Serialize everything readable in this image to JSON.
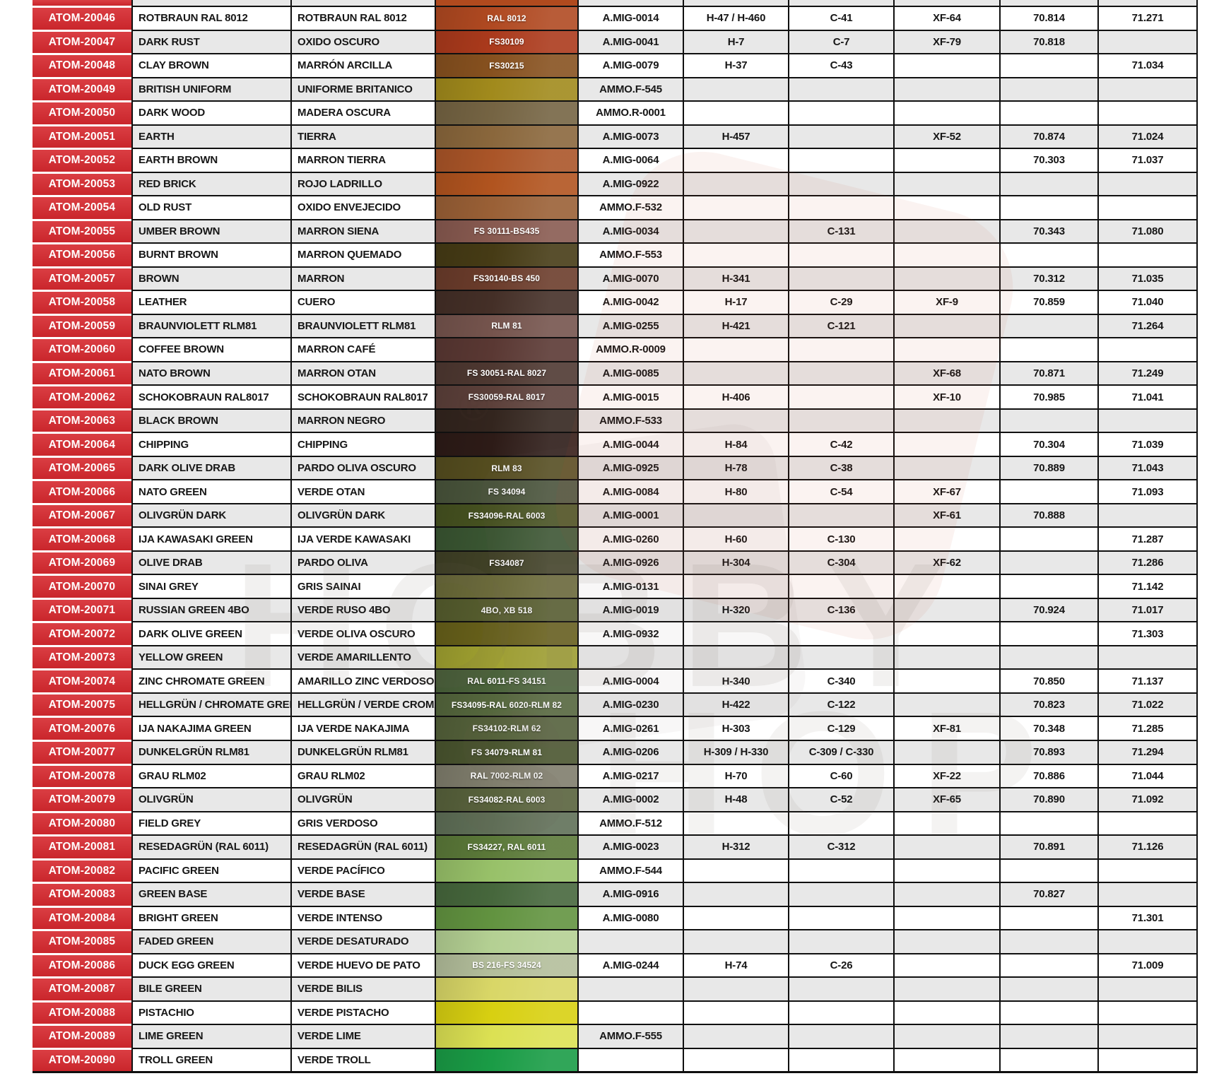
{
  "watermark": {
    "line1": "HOBBY",
    "line2": "SHOP",
    "reg_mark": "®"
  },
  "colors": {
    "atom_red": "#d6282e",
    "stripe_gray": "#e8e8e8",
    "row_white": "#ffffff",
    "grid_black": "#101010"
  },
  "top_partial_row": {
    "swatch_color": "#b04a1e"
  },
  "chart_data": {
    "type": "table",
    "columns": [
      "atom_code",
      "name_en",
      "name_es",
      "swatch",
      "amig",
      "hataka_h",
      "mr_color_c",
      "tamiya_xf",
      "vallejo_70",
      "vallejo_71"
    ],
    "rows": [
      {
        "code": "ATOM-20046",
        "en": "ROTBRAUN RAL 8012",
        "es": "ROTBRAUN RAL 8012",
        "swatch": {
          "color": "#b04921",
          "label": "RAL 8012"
        },
        "amig": "A.MIG-0014",
        "h": "H-47 / H-460",
        "c": "C-41",
        "xf": "XF-64",
        "v70": "70.814",
        "v71": "71.271"
      },
      {
        "code": "ATOM-20047",
        "en": "DARK RUST",
        "es": "OXIDO OSCURO",
        "swatch": {
          "color": "#ab3a1c",
          "label": "FS30109"
        },
        "amig": "A.MIG-0041",
        "h": "H-7",
        "c": "C-7",
        "xf": "XF-79",
        "v70": "70.818",
        "v71": ""
      },
      {
        "code": "ATOM-20048",
        "en": "CLAY BROWN",
        "es": "MARRÓN ARCILLA",
        "swatch": {
          "color": "#87511f",
          "label": "FS30215"
        },
        "amig": "A.MIG-0079",
        "h": "H-37",
        "c": "C-43",
        "xf": "",
        "v70": "",
        "v71": "71.034"
      },
      {
        "code": "ATOM-20049",
        "en": "BRITISH UNIFORM",
        "es": "UNIFORME BRITANICO",
        "swatch": {
          "color": "#a18a1c",
          "label": ""
        },
        "amig": "AMMO.F-545",
        "h": "",
        "c": "",
        "xf": "",
        "v70": "",
        "v71": ""
      },
      {
        "code": "ATOM-20050",
        "en": "DARK WOOD",
        "es": "MADERA OSCURA",
        "swatch": {
          "color": "#756443",
          "label": ""
        },
        "amig": "AMMO.R-0001",
        "h": "",
        "c": "",
        "xf": "",
        "v70": "",
        "v71": ""
      },
      {
        "code": "ATOM-20051",
        "en": "EARTH",
        "es": "TIERRA",
        "swatch": {
          "color": "#8a673c",
          "label": ""
        },
        "amig": "A.MIG-0073",
        "h": "H-457",
        "c": "",
        "xf": "XF-52",
        "v70": "70.874",
        "v71": "71.024"
      },
      {
        "code": "ATOM-20052",
        "en": "EARTH BROWN",
        "es": "MARRON TIERRA",
        "swatch": {
          "color": "#aa5528",
          "label": ""
        },
        "amig": "A.MIG-0064",
        "h": "",
        "c": "",
        "xf": "",
        "v70": "70.303",
        "v71": "71.037"
      },
      {
        "code": "ATOM-20053",
        "en": "RED BRICK",
        "es": "ROJO LADRILLO",
        "swatch": {
          "color": "#b1541f",
          "label": ""
        },
        "amig": "A.MIG-0922",
        "h": "",
        "c": "",
        "xf": "",
        "v70": "",
        "v71": ""
      },
      {
        "code": "ATOM-20054",
        "en": "OLD RUST",
        "es": "OXIDO ENVEJECIDO",
        "swatch": {
          "color": "#9a6036",
          "label": ""
        },
        "amig": "AMMO.F-532",
        "h": "",
        "c": "",
        "xf": "",
        "v70": "",
        "v71": ""
      },
      {
        "code": "ATOM-20055",
        "en": "UMBER BROWN",
        "es": "MARRON SIENA",
        "swatch": {
          "color": "#885a50",
          "label": "FS 30111-BS435"
        },
        "amig": "A.MIG-0034",
        "h": "",
        "c": "C-131",
        "xf": "",
        "v70": "70.343",
        "v71": "71.080"
      },
      {
        "code": "ATOM-20056",
        "en": "BURNT BROWN",
        "es": "MARRON QUEMADO",
        "swatch": {
          "color": "#463b15",
          "label": ""
        },
        "amig": "AMMO.F-553",
        "h": "",
        "c": "",
        "xf": "",
        "v70": "",
        "v71": ""
      },
      {
        "code": "ATOM-20057",
        "en": "BROWN",
        "es": "MARRON",
        "swatch": {
          "color": "#6b3c2b",
          "label": "FS30140-BS 450"
        },
        "amig": "A.MIG-0070",
        "h": "H-341",
        "c": "",
        "xf": "",
        "v70": "70.312",
        "v71": "71.035"
      },
      {
        "code": "ATOM-20058",
        "en": "LEATHER",
        "es": "CUERO",
        "swatch": {
          "color": "#442f27",
          "label": ""
        },
        "amig": "A.MIG-0042",
        "h": "H-17",
        "c": "C-29",
        "xf": "XF-9",
        "v70": "70.859",
        "v71": "71.040"
      },
      {
        "code": "ATOM-20059",
        "en": "BRAUNVIOLETT RLM81",
        "es": "BRAUNVIOLETT RLM81",
        "swatch": {
          "color": "#75544d",
          "label": "RLM 81"
        },
        "amig": "A.MIG-0255",
        "h": "H-421",
        "c": "C-121",
        "xf": "",
        "v70": "",
        "v71": "71.264"
      },
      {
        "code": "ATOM-20060",
        "en": "COFFEE BROWN",
        "es": "MARRON CAFÉ",
        "swatch": {
          "color": "#5a3833",
          "label": ""
        },
        "amig": "AMMO.R-0009",
        "h": "",
        "c": "",
        "xf": "",
        "v70": "",
        "v71": ""
      },
      {
        "code": "ATOM-20061",
        "en": "NATO BROWN",
        "es": "MARRON OTAN",
        "swatch": {
          "color": "#4e3831",
          "label": "FS 30051-RAL 8027"
        },
        "amig": "A.MIG-0085",
        "h": "",
        "c": "",
        "xf": "XF-68",
        "v70": "70.871",
        "v71": "71.249"
      },
      {
        "code": "ATOM-20062",
        "en": "SCHOKOBRAUN RAL8017",
        "es": "SCHOKOBRAUN RAL8017",
        "swatch": {
          "color": "#5c403a",
          "label": "FS30059-RAL 8017"
        },
        "amig": "A.MIG-0015",
        "h": "H-406",
        "c": "",
        "xf": "XF-10",
        "v70": "70.985",
        "v71": "71.041"
      },
      {
        "code": "ATOM-20063",
        "en": "BLACK BROWN",
        "es": "MARRON NEGRO",
        "swatch": {
          "color": "#33251e",
          "label": ""
        },
        "amig": "AMMO.F-533",
        "h": "",
        "c": "",
        "xf": "",
        "v70": "",
        "v71": ""
      },
      {
        "code": "ATOM-20064",
        "en": "CHIPPING",
        "es": "CHIPPING",
        "swatch": {
          "color": "#2d1b17",
          "label": ""
        },
        "amig": "A.MIG-0044",
        "h": "H-84",
        "c": "C-42",
        "xf": "",
        "v70": "70.304",
        "v71": "71.039"
      },
      {
        "code": "ATOM-20065",
        "en": "DARK OLIVE DRAB",
        "es": "PARDO OLIVA OSCURO",
        "swatch": {
          "color": "#554d1f",
          "label": "RLM 83"
        },
        "amig": "A.MIG-0925",
        "h": "H-78",
        "c": "C-38",
        "xf": "",
        "v70": "70.889",
        "v71": "71.043"
      },
      {
        "code": "ATOM-20066",
        "en": "NATO GREEN",
        "es": "VERDE OTAN",
        "swatch": {
          "color": "#49543b",
          "label": "FS 34094"
        },
        "amig": "A.MIG-0084",
        "h": "H-80",
        "c": "C-54",
        "xf": "XF-67",
        "v70": "",
        "v71": "71.093"
      },
      {
        "code": "ATOM-20067",
        "en": "OLIVGRÜN DARK",
        "es": "OLIVGRÜN DARK",
        "swatch": {
          "color": "#465220",
          "label": "FS34096-RAL 6003"
        },
        "amig": "A.MIG-0001",
        "h": "",
        "c": "",
        "xf": "XF-61",
        "v70": "70.888",
        "v71": ""
      },
      {
        "code": "ATOM-20068",
        "en": "IJA KAWASAKI GREEN",
        "es": "IJA VERDE KAWASAKI",
        "swatch": {
          "color": "#3a5632",
          "label": ""
        },
        "amig": "A.MIG-0260",
        "h": "H-60",
        "c": "C-130",
        "xf": "",
        "v70": "",
        "v71": "71.287"
      },
      {
        "code": "ATOM-20069",
        "en": "OLIVE DRAB",
        "es": "PARDO OLIVA",
        "swatch": {
          "color": "#404126",
          "label": "FS34087"
        },
        "amig": "A.MIG-0926",
        "h": "H-304",
        "c": "C-304",
        "xf": "XF-62",
        "v70": "",
        "v71": "71.286"
      },
      {
        "code": "ATOM-20070",
        "en": "SINAI GREY",
        "es": "GRIS SAINAI",
        "swatch": {
          "color": "#6b6b39",
          "label": ""
        },
        "amig": "A.MIG-0131",
        "h": "",
        "c": "",
        "xf": "",
        "v70": "",
        "v71": "71.142"
      },
      {
        "code": "ATOM-20071",
        "en": "RUSSIAN GREEN 4BO",
        "es": "VERDE RUSO 4BO",
        "swatch": {
          "color": "#565d2e",
          "label": "4BO, XB 518"
        },
        "amig": "A.MIG-0019",
        "h": "H-320",
        "c": "C-136",
        "xf": "",
        "v70": "70.924",
        "v71": "71.017"
      },
      {
        "code": "ATOM-20072",
        "en": "DARK OLIVE GREEN",
        "es": "VERDE OLIVA OSCURO",
        "swatch": {
          "color": "#67601a",
          "label": ""
        },
        "amig": "A.MIG-0932",
        "h": "",
        "c": "",
        "xf": "",
        "v70": "",
        "v71": "71.303"
      },
      {
        "code": "ATOM-20073",
        "en": "YELLOW GREEN",
        "es": "VERDE AMARILLENTO",
        "swatch": {
          "color": "#a0a130",
          "label": ""
        },
        "amig": "",
        "h": "",
        "c": "",
        "xf": "",
        "v70": "",
        "v71": ""
      },
      {
        "code": "ATOM-20074",
        "en": "ZINC CHROMATE GREEN",
        "es": "AMARILLO ZINC VERDOSO",
        "swatch": {
          "color": "#4a623a",
          "label": "RAL 6011-FS 34151"
        },
        "amig": "A.MIG-0004",
        "h": "H-340",
        "c": "C-340",
        "xf": "",
        "v70": "70.850",
        "v71": "71.137"
      },
      {
        "code": "ATOM-20075",
        "en": "HELLGRÜN / CHROMATE GREEN",
        "es": "HELLGRÜN / VERDE CROMADO",
        "swatch": {
          "color": "#55673d",
          "label": "FS34095-RAL 6020-RLM 82"
        },
        "amig": "A.MIG-0230",
        "h": "H-422",
        "c": "C-122",
        "xf": "",
        "v70": "70.823",
        "v71": "71.022"
      },
      {
        "code": "ATOM-20076",
        "en": "IJA NAKAJIMA GREEN",
        "es": "IJA VERDE NAKAJIMA",
        "swatch": {
          "color": "#54613a",
          "label": "FS34102-RLM 62"
        },
        "amig": "A.MIG-0261",
        "h": "H-303",
        "c": "C-129",
        "xf": "XF-81",
        "v70": "70.348",
        "v71": "71.285"
      },
      {
        "code": "ATOM-20077",
        "en": "DUNKELGRÜN RLM81",
        "es": "DUNKELGRÜN RLM81",
        "swatch": {
          "color": "#4a552f",
          "label": "FS 34079-RLM 81"
        },
        "amig": "A.MIG-0206",
        "h": "H-309 / H-330",
        "c": "C-309 / C-330",
        "xf": "",
        "v70": "70.893",
        "v71": "71.294"
      },
      {
        "code": "ATOM-20078",
        "en": "GRAU RLM02",
        "es": "GRAU RLM02",
        "swatch": {
          "color": "#7f7d6c",
          "label": "RAL 7002-RLM 02"
        },
        "amig": "A.MIG-0217",
        "h": "H-70",
        "c": "C-60",
        "xf": "XF-22",
        "v70": "70.886",
        "v71": "71.044"
      },
      {
        "code": "ATOM-20079",
        "en": "OLIVGRÜN",
        "es": "OLIVGRÜN",
        "swatch": {
          "color": "#58623c",
          "label": "FS34082-RAL 6003"
        },
        "amig": "A.MIG-0002",
        "h": "H-48",
        "c": "C-52",
        "xf": "XF-65",
        "v70": "70.890",
        "v71": "71.092"
      },
      {
        "code": "ATOM-20080",
        "en": "FIELD GREY",
        "es": "GRIS VERDOSO",
        "swatch": {
          "color": "#5f6f57",
          "label": ""
        },
        "amig": "AMMO.F-512",
        "h": "",
        "c": "",
        "xf": "",
        "v70": "",
        "v71": ""
      },
      {
        "code": "ATOM-20081",
        "en": "RESEDAGRÜN (RAL 6011)",
        "es": "RESEDAGRÜN (RAL 6011)",
        "swatch": {
          "color": "#5b7939",
          "label": "FS34227, RAL 6011"
        },
        "amig": "A.MIG-0023",
        "h": "H-312",
        "c": "C-312",
        "xf": "",
        "v70": "70.891",
        "v71": "71.126"
      },
      {
        "code": "ATOM-20082",
        "en": "PACIFIC GREEN",
        "es": "VERDE PACÍFICO",
        "swatch": {
          "color": "#98c169",
          "label": ""
        },
        "amig": "AMMO.F-544",
        "h": "",
        "c": "",
        "xf": "",
        "v70": "",
        "v71": ""
      },
      {
        "code": "ATOM-20083",
        "en": "GREEN BASE",
        "es": "VERDE BASE",
        "swatch": {
          "color": "#46673c",
          "label": ""
        },
        "amig": "A.MIG-0916",
        "h": "",
        "c": "",
        "xf": "",
        "v70": "70.827",
        "v71": ""
      },
      {
        "code": "ATOM-20084",
        "en": "BRIGHT GREEN",
        "es": "VERDE INTENSO",
        "swatch": {
          "color": "#629340",
          "label": ""
        },
        "amig": "A.MIG-0080",
        "h": "",
        "c": "",
        "xf": "",
        "v70": "",
        "v71": "71.301"
      },
      {
        "code": "ATOM-20085",
        "en": "FADED GREEN",
        "es": "VERDE DESATURADO",
        "swatch": {
          "color": "#b4d093",
          "label": ""
        },
        "amig": "",
        "h": "",
        "c": "",
        "xf": "",
        "v70": "",
        "v71": ""
      },
      {
        "code": "ATOM-20086",
        "en": "DUCK EGG GREEN",
        "es": "VERDE HUEVO DE PATO",
        "swatch": {
          "color": "#b3be9b",
          "label": "BS 216-FS 34524"
        },
        "amig": "A.MIG-0244",
        "h": "H-74",
        "c": "C-26",
        "xf": "",
        "v70": "",
        "v71": "71.009"
      },
      {
        "code": "ATOM-20087",
        "en": "BILE GREEN",
        "es": "VERDE BILIS",
        "swatch": {
          "color": "#d9d767",
          "label": ""
        },
        "amig": "",
        "h": "",
        "c": "",
        "xf": "",
        "v70": "",
        "v71": ""
      },
      {
        "code": "ATOM-20088",
        "en": "PISTACHIO",
        "es": "VERDE PISTACHO",
        "swatch": {
          "color": "#d8d011",
          "label": ""
        },
        "amig": "",
        "h": "",
        "c": "",
        "xf": "",
        "v70": "",
        "v71": ""
      },
      {
        "code": "ATOM-20089",
        "en": "LIME GREEN",
        "es": "VERDE LIME",
        "swatch": {
          "color": "#dce153",
          "label": ""
        },
        "amig": "AMMO.F-555",
        "h": "",
        "c": "",
        "xf": "",
        "v70": "",
        "v71": ""
      },
      {
        "code": "ATOM-20090",
        "en": "TROLL GREEN",
        "es": "VERDE TROLL",
        "swatch": {
          "color": "#1a9c46",
          "label": ""
        },
        "amig": "",
        "h": "",
        "c": "",
        "xf": "",
        "v70": "",
        "v71": ""
      }
    ]
  }
}
